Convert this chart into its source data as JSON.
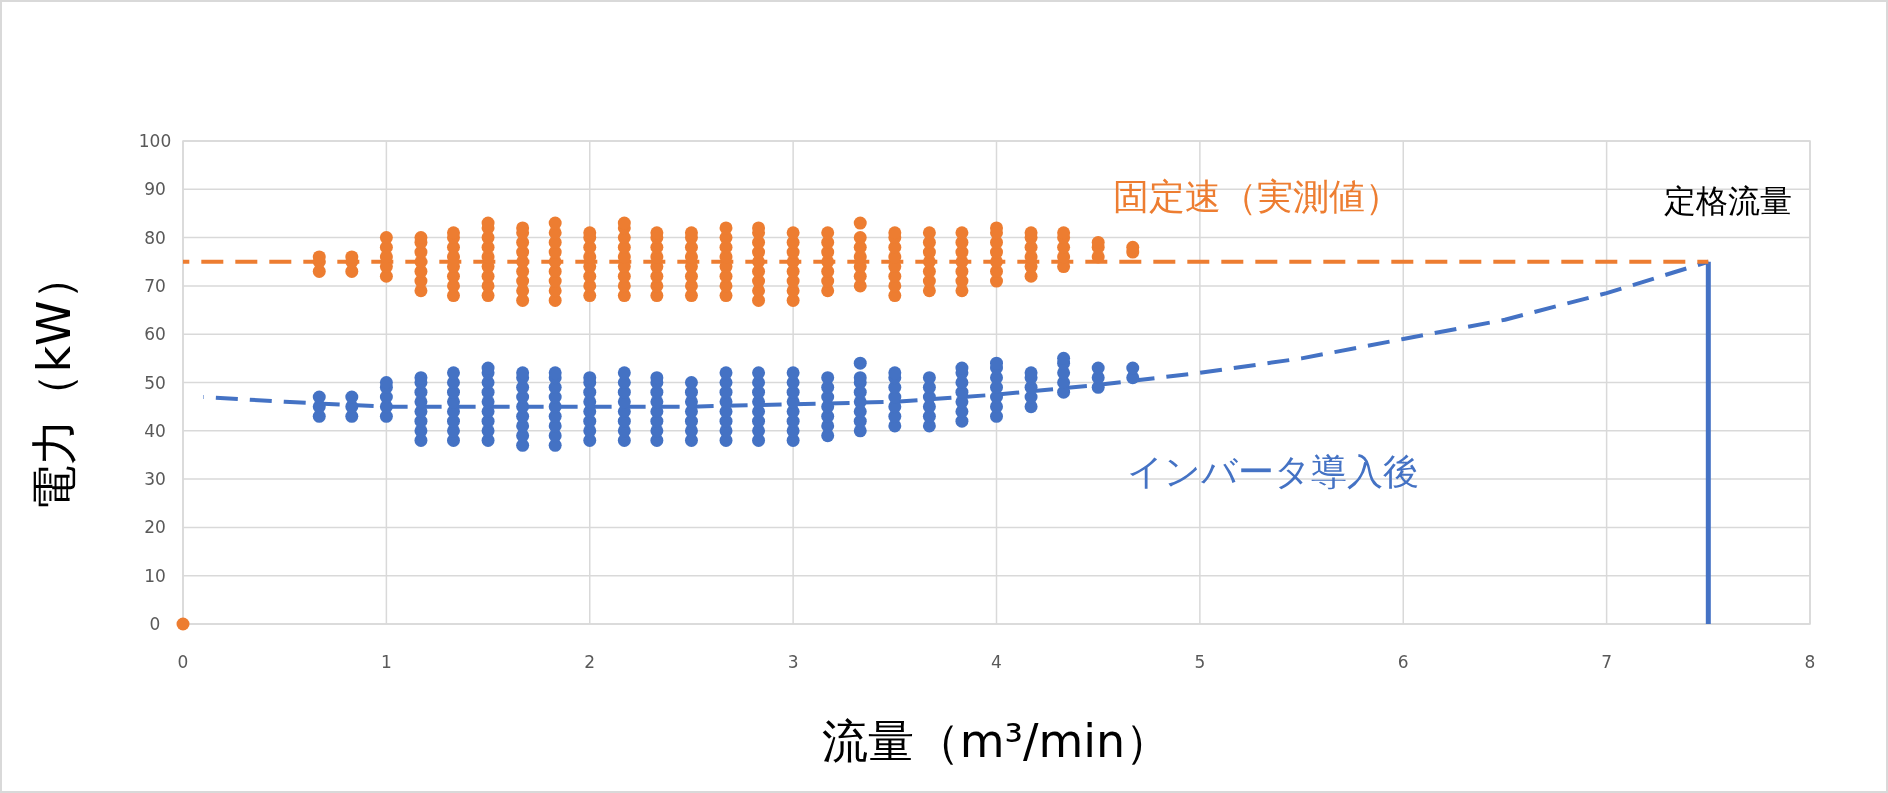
{
  "chart_data": {
    "type": "scatter",
    "xlabel": "流量（m³/min）",
    "ylabel": "電力（kW）",
    "xlim": [
      0,
      8
    ],
    "ylim": [
      0,
      100
    ],
    "xticks": [
      0,
      1,
      2,
      3,
      4,
      5,
      6,
      7,
      8
    ],
    "yticks": [
      0,
      10,
      20,
      30,
      40,
      50,
      60,
      70,
      80,
      90,
      100
    ],
    "grid": true,
    "legend": false,
    "annotations": [
      {
        "text": "定格流量",
        "x": 7.5,
        "y": 75
      }
    ],
    "series": [
      {
        "name": "固定速（実測値）",
        "type": "scatter",
        "marker": "circle",
        "color": "#ed7d31",
        "x": [
          0,
          0.67,
          0.67,
          0.67,
          0.83,
          0.83,
          0.83,
          1,
          1,
          1,
          1,
          1,
          1.17,
          1.17,
          1.17,
          1.17,
          1.17,
          1.17,
          1.17,
          1.33,
          1.33,
          1.33,
          1.33,
          1.33,
          1.33,
          1.33,
          1.33,
          1.5,
          1.5,
          1.5,
          1.5,
          1.5,
          1.5,
          1.5,
          1.5,
          1.5,
          1.67,
          1.67,
          1.67,
          1.67,
          1.67,
          1.67,
          1.67,
          1.67,
          1.67,
          1.83,
          1.83,
          1.83,
          1.83,
          1.83,
          1.83,
          1.83,
          1.83,
          1.83,
          2,
          2,
          2,
          2,
          2,
          2,
          2,
          2,
          2.17,
          2.17,
          2.17,
          2.17,
          2.17,
          2.17,
          2.17,
          2.17,
          2.17,
          2.33,
          2.33,
          2.33,
          2.33,
          2.33,
          2.33,
          2.33,
          2.33,
          2.5,
          2.5,
          2.5,
          2.5,
          2.5,
          2.5,
          2.5,
          2.5,
          2.67,
          2.67,
          2.67,
          2.67,
          2.67,
          2.67,
          2.67,
          2.67,
          2.83,
          2.83,
          2.83,
          2.83,
          2.83,
          2.83,
          2.83,
          2.83,
          2.83,
          3,
          3,
          3,
          3,
          3,
          3,
          3,
          3,
          3.17,
          3.17,
          3.17,
          3.17,
          3.17,
          3.17,
          3.17,
          3.33,
          3.33,
          3.33,
          3.33,
          3.33,
          3.33,
          3.33,
          3.5,
          3.5,
          3.5,
          3.5,
          3.5,
          3.5,
          3.5,
          3.5,
          3.67,
          3.67,
          3.67,
          3.67,
          3.67,
          3.67,
          3.67,
          3.83,
          3.83,
          3.83,
          3.83,
          3.83,
          3.83,
          3.83,
          4,
          4,
          4,
          4,
          4,
          4,
          4,
          4.17,
          4.17,
          4.17,
          4.17,
          4.17,
          4.17,
          4.33,
          4.33,
          4.33,
          4.33,
          4.33,
          4.5,
          4.5,
          4.5,
          4.67,
          4.67
        ],
        "values": [
          0,
          73,
          75,
          76,
          73,
          75,
          76,
          72,
          74,
          76,
          78,
          80,
          69,
          71,
          73,
          75,
          77,
          79,
          80,
          68,
          70,
          72,
          74,
          76,
          78,
          80,
          81,
          68,
          70,
          72,
          74,
          76,
          78,
          80,
          82,
          83,
          67,
          69,
          71,
          73,
          75,
          77,
          79,
          81,
          82,
          67,
          69,
          71,
          73,
          75,
          77,
          79,
          81,
          83,
          68,
          70,
          72,
          74,
          76,
          78,
          80,
          81,
          68,
          70,
          72,
          74,
          76,
          78,
          80,
          82,
          83,
          68,
          70,
          72,
          74,
          76,
          78,
          80,
          81,
          68,
          70,
          72,
          74,
          76,
          78,
          80,
          81,
          68,
          70,
          72,
          74,
          76,
          78,
          80,
          82,
          67,
          69,
          71,
          73,
          75,
          77,
          79,
          81,
          82,
          67,
          69,
          71,
          73,
          75,
          77,
          79,
          81,
          69,
          71,
          73,
          75,
          77,
          79,
          81,
          70,
          72,
          74,
          76,
          78,
          80,
          83,
          68,
          70,
          72,
          74,
          76,
          78,
          80,
          81,
          69,
          71,
          73,
          75,
          77,
          79,
          81,
          69,
          71,
          73,
          75,
          77,
          79,
          81,
          71,
          73,
          75,
          77,
          79,
          81,
          82,
          72,
          74,
          76,
          78,
          80,
          81,
          74,
          76,
          78,
          80,
          81,
          76,
          78,
          79,
          77,
          78
        ]
      },
      {
        "name": "インバータ導入後",
        "type": "scatter",
        "marker": "circle",
        "color": "#4472c4",
        "x": [
          0.67,
          0.67,
          0.67,
          0.83,
          0.83,
          0.83,
          1,
          1,
          1,
          1,
          1,
          1.17,
          1.17,
          1.17,
          1.17,
          1.17,
          1.17,
          1.17,
          1.17,
          1.33,
          1.33,
          1.33,
          1.33,
          1.33,
          1.33,
          1.33,
          1.33,
          1.5,
          1.5,
          1.5,
          1.5,
          1.5,
          1.5,
          1.5,
          1.5,
          1.5,
          1.67,
          1.67,
          1.67,
          1.67,
          1.67,
          1.67,
          1.67,
          1.67,
          1.67,
          1.83,
          1.83,
          1.83,
          1.83,
          1.83,
          1.83,
          1.83,
          1.83,
          1.83,
          2,
          2,
          2,
          2,
          2,
          2,
          2,
          2,
          2.17,
          2.17,
          2.17,
          2.17,
          2.17,
          2.17,
          2.17,
          2.17,
          2.33,
          2.33,
          2.33,
          2.33,
          2.33,
          2.33,
          2.33,
          2.33,
          2.5,
          2.5,
          2.5,
          2.5,
          2.5,
          2.5,
          2.5,
          2.67,
          2.67,
          2.67,
          2.67,
          2.67,
          2.67,
          2.67,
          2.67,
          2.83,
          2.83,
          2.83,
          2.83,
          2.83,
          2.83,
          2.83,
          2.83,
          3,
          3,
          3,
          3,
          3,
          3,
          3,
          3,
          3.17,
          3.17,
          3.17,
          3.17,
          3.17,
          3.17,
          3.17,
          3.33,
          3.33,
          3.33,
          3.33,
          3.33,
          3.33,
          3.33,
          3.33,
          3.5,
          3.5,
          3.5,
          3.5,
          3.5,
          3.5,
          3.5,
          3.67,
          3.67,
          3.67,
          3.67,
          3.67,
          3.67,
          3.83,
          3.83,
          3.83,
          3.83,
          3.83,
          3.83,
          3.83,
          4,
          4,
          4,
          4,
          4,
          4,
          4,
          4.17,
          4.17,
          4.17,
          4.17,
          4.17,
          4.33,
          4.33,
          4.33,
          4.33,
          4.33,
          4.5,
          4.5,
          4.5,
          4.67,
          4.67
        ],
        "values": [
          43,
          45,
          47,
          43,
          45,
          47,
          43,
          45,
          47,
          49,
          50,
          38,
          40,
          42,
          44,
          46,
          48,
          50,
          51,
          38,
          40,
          42,
          44,
          46,
          48,
          50,
          52,
          38,
          40,
          42,
          44,
          46,
          48,
          50,
          52,
          53,
          37,
          39,
          41,
          43,
          45,
          47,
          49,
          51,
          52,
          37,
          39,
          41,
          43,
          45,
          47,
          49,
          51,
          52,
          38,
          40,
          42,
          44,
          46,
          48,
          50,
          51,
          38,
          40,
          42,
          44,
          46,
          48,
          50,
          52,
          38,
          40,
          42,
          44,
          46,
          48,
          50,
          51,
          38,
          40,
          42,
          44,
          46,
          48,
          50,
          38,
          40,
          42,
          44,
          46,
          48,
          50,
          52,
          38,
          40,
          42,
          44,
          46,
          48,
          50,
          52,
          38,
          40,
          42,
          44,
          46,
          48,
          50,
          52,
          39,
          41,
          43,
          45,
          47,
          49,
          51,
          40,
          42,
          44,
          46,
          48,
          50,
          51,
          54,
          41,
          43,
          45,
          47,
          49,
          51,
          52,
          41,
          43,
          45,
          47,
          49,
          51,
          42,
          44,
          46,
          48,
          50,
          52,
          53,
          43,
          45,
          47,
          49,
          51,
          53,
          54,
          45,
          47,
          49,
          51,
          52,
          48,
          50,
          52,
          54,
          55,
          49,
          51,
          53,
          51,
          53
        ]
      },
      {
        "type": "line",
        "line_style": "dashed",
        "color": "#ed7d31",
        "x": [
          0,
          7.5
        ],
        "values": [
          75,
          75
        ]
      },
      {
        "type": "line",
        "line_style": "dashed",
        "color": "#4472c4",
        "x": [
          0.1,
          0.5,
          1,
          1.5,
          2,
          2.5,
          3,
          3.5,
          4,
          4.5,
          5,
          5.5,
          6,
          6.5,
          7,
          7.5
        ],
        "values": [
          47,
          46,
          45,
          45,
          45,
          45,
          45.5,
          46,
          47.5,
          49.5,
          52,
          55,
          59,
          63,
          68.5,
          75
        ]
      },
      {
        "type": "line",
        "line_style": "solid",
        "color": "#4472c4",
        "x": [
          7.5,
          7.5
        ],
        "values": [
          0,
          75
        ]
      }
    ]
  }
}
